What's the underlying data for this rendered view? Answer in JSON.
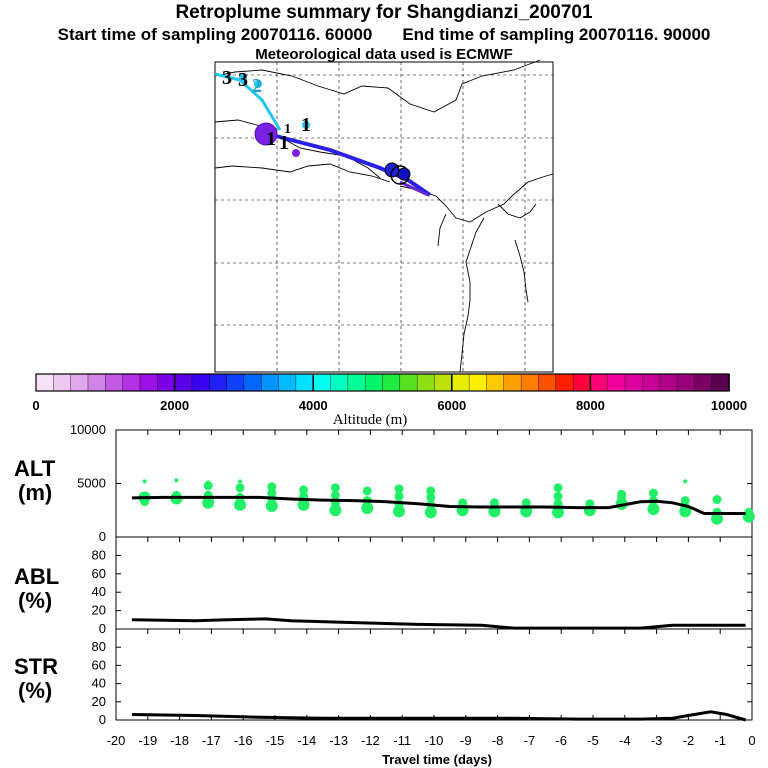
{
  "title": "Retroplume summary for Shangdianzi_200701",
  "start_label": "Start time of sampling 20070116. 60000",
  "end_label": "End time of sampling 20070116. 90000",
  "met_label": "Meteorological data used is ECMWF",
  "map_labels": {
    "l3a": "3",
    "l3b": "3",
    "l2": "2",
    "l1a": "1",
    "l1b": "1",
    "l1c": "1",
    "l1d": "1"
  },
  "colorbar": {
    "title": "Altitude (m)",
    "ticks": [
      "0",
      "2000",
      "4000",
      "6000",
      "8000",
      "10000"
    ],
    "colors": [
      "#f7e1f7",
      "#edc8f0",
      "#e0a8ec",
      "#d283e8",
      "#c35ae6",
      "#b232e4",
      "#9b10e6",
      "#7d00e6",
      "#5a00e8",
      "#3a00f0",
      "#2020f5",
      "#1040ff",
      "#0068ff",
      "#0094ff",
      "#00bcff",
      "#00e1ff",
      "#00ffee",
      "#00ffc0",
      "#00ff96",
      "#00f56a",
      "#20eb40",
      "#5ae020",
      "#8ee014",
      "#bde00a",
      "#e8ec00",
      "#fff000",
      "#ffc800",
      "#ffa000",
      "#ff7d00",
      "#ff5000",
      "#ff1e00",
      "#ff003c",
      "#ff0078",
      "#f0009c",
      "#dc00a0",
      "#c80096",
      "#b00087",
      "#960078",
      "#7a0064",
      "#5e0050"
    ]
  },
  "chart_data": [
    {
      "type": "line",
      "panel": "ALT",
      "ylabel": "ALT (m)",
      "xlabel": "Travel time (days)",
      "xlim": [
        -20,
        0
      ],
      "ylim": [
        0,
        10000
      ],
      "yticks": [
        "10000",
        "5000",
        "0"
      ],
      "x": [
        -19.5,
        -18.5,
        -17.5,
        -16.5,
        -15.5,
        -14.5,
        -13.5,
        -12.5,
        -11.5,
        -10.5,
        -9.5,
        -8.5,
        -7.5,
        -6.5,
        -5.5,
        -4.5,
        -3.5,
        -3.0,
        -2.5,
        -2.0,
        -1.5,
        -1.0,
        -0.5,
        -0.2
      ],
      "values": [
        3650,
        3700,
        3700,
        3700,
        3700,
        3550,
        3450,
        3400,
        3300,
        3100,
        2850,
        2800,
        2800,
        2800,
        2750,
        2750,
        3300,
        3350,
        3200,
        2850,
        2200,
        2200,
        2200,
        2200
      ],
      "clusters": [
        {
          "x": -19.1,
          "y": [
            3700,
            3300,
            5200
          ]
        },
        {
          "x": -18.1,
          "y": [
            3600,
            3900,
            5300
          ]
        },
        {
          "x": -17.1,
          "y": [
            3200,
            3900,
            4800,
            5100
          ]
        },
        {
          "x": -16.1,
          "y": [
            3000,
            3700,
            4600,
            5200
          ]
        },
        {
          "x": -15.1,
          "y": [
            2900,
            3600,
            4100,
            4700
          ]
        },
        {
          "x": -14.1,
          "y": [
            3000,
            3800,
            4400
          ]
        },
        {
          "x": -13.1,
          "y": [
            2500,
            3200,
            3900,
            4600
          ]
        },
        {
          "x": -12.1,
          "y": [
            2700,
            3400,
            4300
          ]
        },
        {
          "x": -11.1,
          "y": [
            2400,
            3100,
            3800,
            4500
          ]
        },
        {
          "x": -10.1,
          "y": [
            2300,
            3000,
            3700,
            4300
          ]
        },
        {
          "x": -9.1,
          "y": [
            2500,
            3200
          ]
        },
        {
          "x": -8.1,
          "y": [
            2400,
            3200
          ]
        },
        {
          "x": -7.1,
          "y": [
            2400,
            3200
          ]
        },
        {
          "x": -6.1,
          "y": [
            2300,
            3100,
            3800,
            4600
          ]
        },
        {
          "x": -5.1,
          "y": [
            2500,
            3100
          ]
        },
        {
          "x": -4.1,
          "y": [
            3100,
            3600,
            4000
          ]
        },
        {
          "x": -3.1,
          "y": [
            2600,
            3400,
            4100
          ]
        },
        {
          "x": -2.1,
          "y": [
            2400,
            2800,
            3400,
            5200
          ]
        },
        {
          "x": -1.1,
          "y": [
            1700,
            2300,
            3500
          ]
        },
        {
          "x": -0.1,
          "y": [
            1900,
            2300
          ]
        }
      ]
    },
    {
      "type": "line",
      "panel": "ABL",
      "ylabel": "ABL (%)",
      "xlim": [
        -20,
        0
      ],
      "ylim": [
        0,
        100
      ],
      "yticks": [
        "80",
        "60",
        "40",
        "20",
        "0"
      ],
      "x": [
        -19.5,
        -17.5,
        -16.5,
        -15.3,
        -14.5,
        -12.5,
        -10.5,
        -8.5,
        -7.5,
        -5.5,
        -3.5,
        -2.5,
        -1.5,
        -0.2
      ],
      "values": [
        10,
        9,
        10,
        11,
        9,
        7,
        5,
        4,
        1,
        1,
        1,
        4,
        4,
        4
      ]
    },
    {
      "type": "line",
      "panel": "STR",
      "ylabel": "STR (%)",
      "xlim": [
        -20,
        0
      ],
      "ylim": [
        0,
        100
      ],
      "yticks": [
        "80",
        "60",
        "40",
        "20",
        "0"
      ],
      "xticks": [
        "-20",
        "-19",
        "-18",
        "-17",
        "-16",
        "-15",
        "-14",
        "-13",
        "-12",
        "-11",
        "-10",
        "-9",
        "-8",
        "-7",
        "-6",
        "-5",
        "-4",
        "-3",
        "-2",
        "-1",
        "0"
      ],
      "x": [
        -19.5,
        -17.5,
        -16.5,
        -15.5,
        -13.5,
        -11.5,
        -9.5,
        -7.5,
        -5.5,
        -3.5,
        -2.5,
        -2.0,
        -1.3,
        -0.8,
        -0.2
      ],
      "values": [
        6,
        5,
        4,
        3,
        2,
        2,
        2,
        2,
        1,
        1,
        2,
        5,
        9,
        6,
        0
      ]
    }
  ]
}
